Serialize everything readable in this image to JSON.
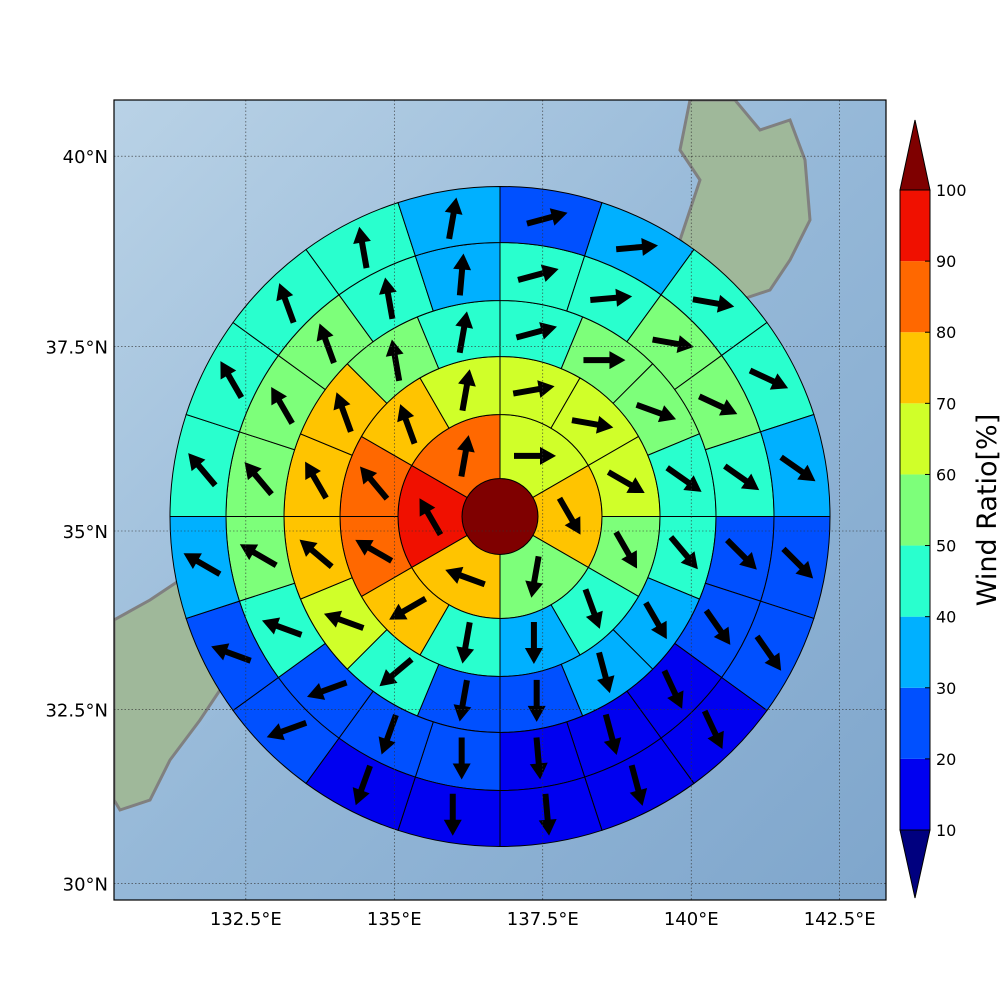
{
  "chart_data": {
    "type": "polar-sector-map",
    "projection": "mercator",
    "xlim": [
      130.28,
      143.28
    ],
    "ylim": [
      29.76,
      40.72
    ],
    "xticks": [
      {
        "value": 132.5,
        "label": "132.5°E"
      },
      {
        "value": 135,
        "label": "135°E"
      },
      {
        "value": 137.5,
        "label": "137.5°E"
      },
      {
        "value": 140,
        "label": "140°E"
      },
      {
        "value": 142.5,
        "label": "142.5°E"
      }
    ],
    "yticks": [
      {
        "value": 30,
        "label": "30°N"
      },
      {
        "value": 32.5,
        "label": "32.5°N"
      },
      {
        "value": 35,
        "label": "35°N"
      },
      {
        "value": 37.5,
        "label": "37.5°N"
      },
      {
        "value": 40,
        "label": "40°N"
      }
    ],
    "grid": true,
    "center": [
      136.78,
      35.2
    ],
    "rings": [
      {
        "values": [
          105
        ]
      },
      {
        "values": [
          65,
          75,
          55,
          75,
          95,
          85
        ],
        "directions": [
          90,
          150,
          190,
          290,
          330,
          10
        ]
      },
      {
        "values": [
          65,
          65,
          65,
          55,
          45,
          35,
          45,
          75,
          85,
          85,
          75,
          65
        ],
        "directions": [
          80,
          100,
          120,
          150,
          160,
          180,
          190,
          240,
          300,
          320,
          340,
          10
        ]
      },
      {
        "values": [
          45,
          55,
          55,
          45,
          45,
          35,
          35,
          25,
          25,
          45,
          65,
          75,
          75,
          75,
          55,
          45
        ],
        "directions": [
          75,
          90,
          110,
          125,
          140,
          150,
          165,
          180,
          190,
          230,
          290,
          310,
          330,
          340,
          350,
          10
        ]
      },
      {
        "values": [
          45,
          45,
          55,
          55,
          45,
          25,
          25,
          15,
          15,
          15,
          25,
          25,
          25,
          45,
          55,
          55,
          55,
          55,
          45,
          35
        ],
        "directions": [
          75,
          85,
          100,
          115,
          125,
          135,
          145,
          155,
          165,
          175,
          180,
          200,
          250,
          290,
          300,
          320,
          330,
          340,
          350,
          5
        ]
      },
      {
        "values": [
          25,
          35,
          45,
          45,
          35,
          25,
          25,
          15,
          15,
          15,
          15,
          15,
          25,
          25,
          35,
          45,
          45,
          45,
          45,
          35
        ],
        "directions": [
          75,
          85,
          100,
          115,
          125,
          135,
          145,
          155,
          165,
          175,
          180,
          200,
          250,
          290,
          300,
          320,
          330,
          340,
          350,
          10
        ]
      }
    ],
    "colorbar": {
      "label": "Wind Ratio[%]",
      "ticks": [
        10,
        20,
        30,
        40,
        50,
        60,
        70,
        80,
        90,
        100
      ],
      "colors": [
        "#00007f",
        "#0000f0",
        "#0050ff",
        "#00b0ff",
        "#29ffce",
        "#7dff7a",
        "#d0ff29",
        "#ffc400",
        "#ff6800",
        "#f01000",
        "#7f0000"
      ]
    }
  }
}
